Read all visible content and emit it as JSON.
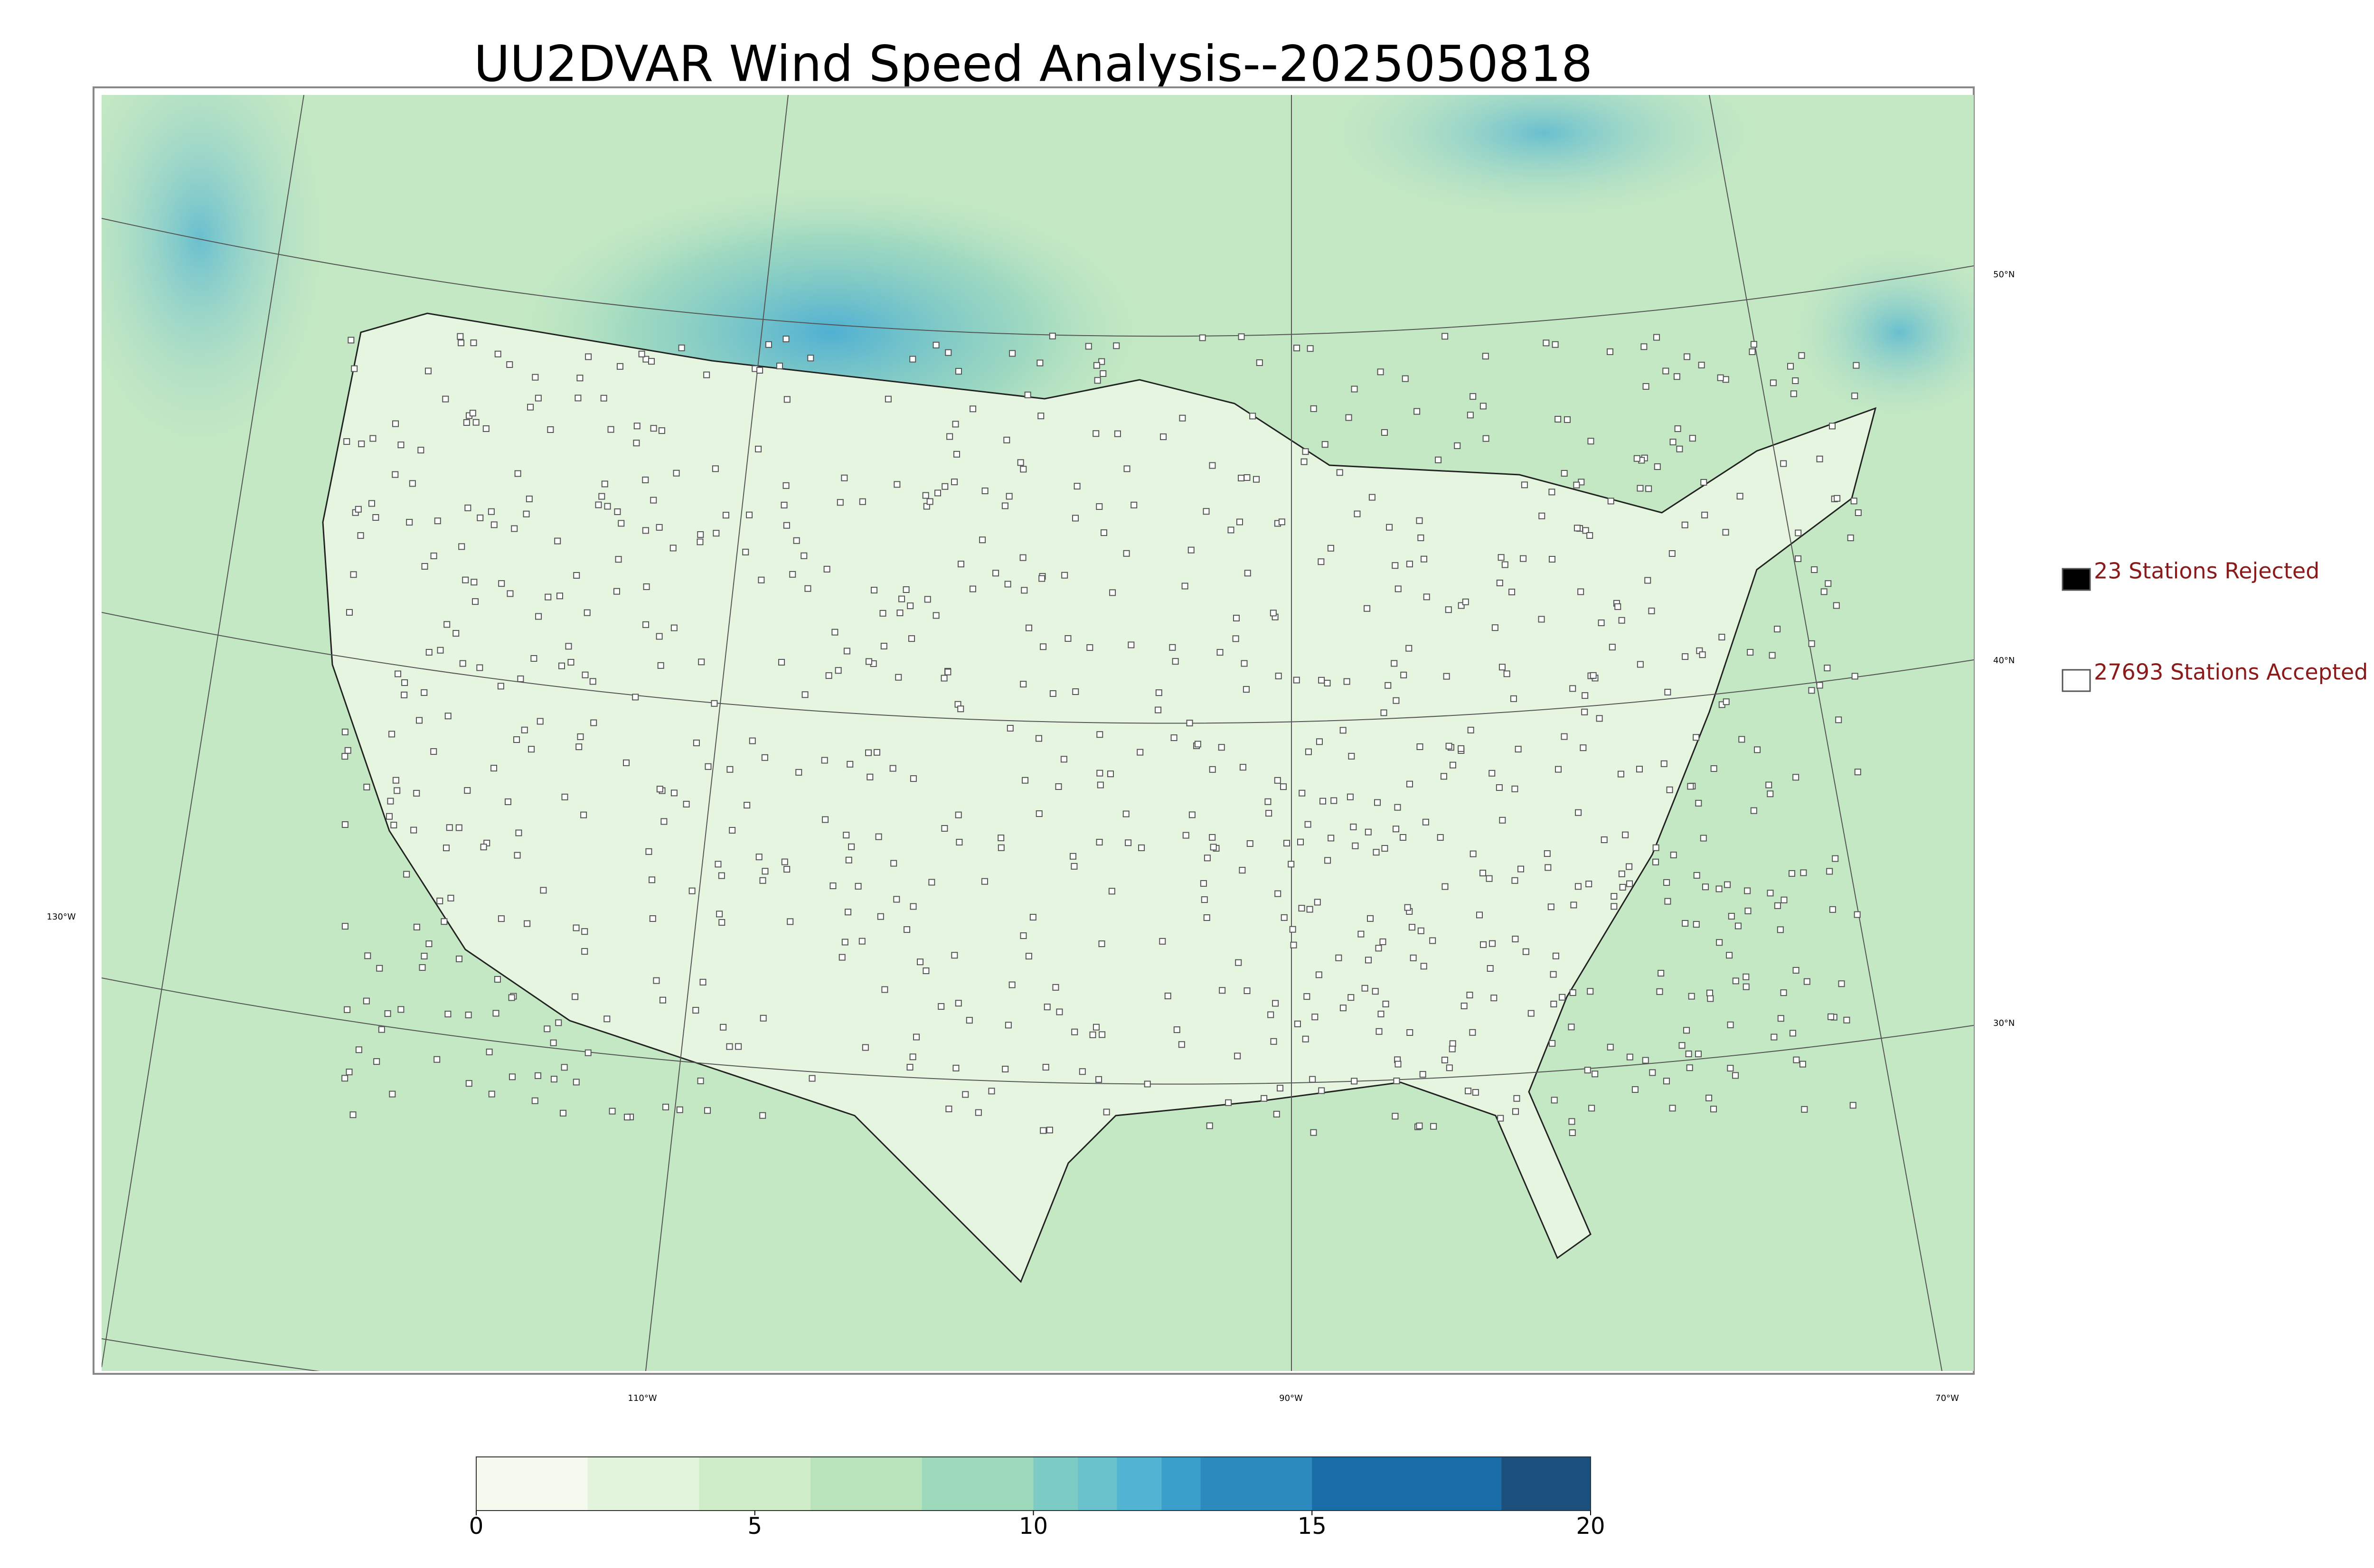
{
  "title": "UU2DVAR Wind Speed Analysis--2025050818",
  "legend": [
    {
      "label": "23 Stations Rejected",
      "color": "#000000"
    },
    {
      "label": "27693 Stations Accepted",
      "color": "#ffffff"
    }
  ],
  "map": {
    "lat_labels": [
      "50°N",
      "40°N",
      "30°N"
    ],
    "lon_labels": [
      "130°W",
      "110°W",
      "90°W",
      "70°W"
    ]
  },
  "colorbar": {
    "lim": [
      0,
      20
    ],
    "ticks": [
      0,
      5,
      10,
      15,
      20
    ],
    "bounds": [
      0,
      2,
      4,
      6,
      8,
      10,
      10.8,
      11.5,
      12.3,
      13,
      15,
      18.4,
      20
    ],
    "colors": [
      "#f4fbee",
      "#e3f4dc",
      "#d0edc9",
      "#b9e4bb",
      "#9cd8b9",
      "#7ccbc4",
      "#68c1cb",
      "#52b3d2",
      "#3a9fcb",
      "#2c8abf",
      "#1a6ea8",
      "#1c507c"
    ]
  }
}
